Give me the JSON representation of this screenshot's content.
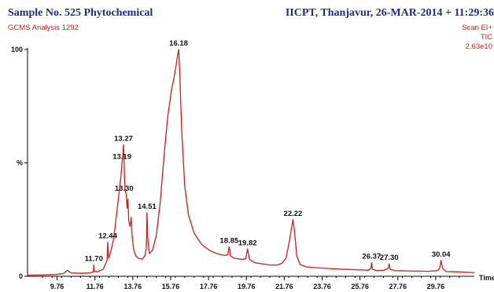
{
  "header": {
    "title_left": "Sample No. 525 Phytochemical",
    "subtitle_left": "GCMS Analysis 1292",
    "title_right": "IICPT, Thanjavur,  26-MAR-2014 + 11:29:36",
    "scan_label": "Scan EI+",
    "tic_label": "TIC",
    "intensity_label": "2.63e10"
  },
  "chart_data": {
    "type": "line",
    "title": "Sample No. 525 Phytochemical",
    "xlabel": "Time",
    "ylabel": "%",
    "xlim": [
      8.2,
      31.8
    ],
    "ylim": [
      0,
      100
    ],
    "x_ticks": [
      "9.76",
      "11.76",
      "13.76",
      "15.76",
      "17.76",
      "19.76",
      "21.76",
      "23.76",
      "25.76",
      "27.76",
      "29.76"
    ],
    "y_ticks": [
      "0",
      "%",
      "100"
    ],
    "line_color": "#d41a1a",
    "series": [
      {
        "x": [
          8.2,
          9.0,
          9.7,
          10.1,
          10.3,
          10.5,
          11.0,
          11.5,
          11.68,
          11.7,
          11.73,
          11.9,
          12.2,
          12.4,
          12.44,
          12.48,
          12.6,
          12.75,
          12.9,
          13.05,
          13.13,
          13.19,
          13.23,
          13.27,
          13.31,
          13.35,
          13.42,
          13.46,
          13.5,
          13.55,
          13.62,
          13.68,
          13.72,
          13.8,
          13.92,
          14.05,
          14.25,
          14.4,
          14.47,
          14.51,
          14.55,
          14.63,
          14.8,
          15.0,
          15.2,
          15.4,
          15.6,
          15.8,
          15.95,
          16.05,
          16.12,
          16.18,
          16.24,
          16.34,
          16.5,
          16.7,
          17.0,
          17.4,
          17.8,
          18.2,
          18.6,
          18.78,
          18.85,
          18.92,
          19.1,
          19.5,
          19.72,
          19.82,
          19.92,
          20.2,
          20.6,
          21.0,
          21.4,
          21.65,
          21.85,
          22.0,
          22.12,
          22.22,
          22.3,
          22.42,
          22.6,
          22.9,
          23.4,
          24.0,
          24.6,
          25.2,
          25.8,
          26.2,
          26.34,
          26.37,
          26.42,
          26.6,
          27.0,
          27.26,
          27.3,
          27.36,
          27.6,
          28.2,
          28.8,
          29.4,
          29.85,
          29.98,
          30.04,
          30.12,
          30.3,
          30.8,
          31.3,
          31.8
        ],
        "y": [
          0.5,
          0.6,
          0.8,
          1.2,
          2.6,
          1.5,
          1.3,
          1.5,
          2.0,
          5.0,
          2.2,
          2.0,
          3.2,
          7.0,
          15.0,
          8.0,
          11.0,
          16.5,
          27.0,
          38.0,
          44.0,
          50.0,
          53.0,
          58.0,
          47.0,
          38.0,
          36.0,
          30.0,
          34.0,
          24.0,
          22.0,
          26.0,
          18.0,
          12.0,
          9.0,
          8.0,
          7.5,
          9.0,
          12.0,
          28.0,
          17.0,
          10.0,
          11.5,
          18.0,
          32.0,
          52.0,
          70.0,
          82.0,
          88.0,
          93.0,
          97.0,
          100.0,
          90.0,
          65.0,
          40.0,
          27.0,
          19.0,
          14.0,
          11.5,
          10.0,
          9.2,
          9.5,
          13.0,
          9.0,
          8.0,
          7.5,
          7.7,
          12.0,
          7.5,
          6.0,
          5.5,
          5.0,
          5.0,
          5.8,
          8.0,
          14.0,
          20.0,
          25.0,
          20.0,
          9.0,
          5.2,
          4.2,
          3.8,
          3.5,
          3.2,
          3.0,
          2.8,
          2.7,
          3.5,
          6.0,
          3.2,
          2.6,
          2.6,
          3.5,
          5.5,
          3.0,
          2.5,
          2.4,
          2.3,
          2.2,
          2.5,
          3.8,
          7.0,
          3.6,
          2.1,
          2.0,
          1.8,
          1.6
        ]
      }
    ],
    "peak_labels": [
      {
        "text": "16.18",
        "x": 16.18,
        "y": 100.0
      },
      {
        "text": "13.27",
        "x": 13.27,
        "y": 58.0
      },
      {
        "text": "13.19",
        "x": 13.19,
        "y": 50.0
      },
      {
        "text": "13.30",
        "x": 13.3,
        "y": 36.0
      },
      {
        "text": "14.51",
        "x": 14.51,
        "y": 28.0
      },
      {
        "text": "12.44",
        "x": 12.44,
        "y": 15.0
      },
      {
        "text": "11.70",
        "x": 11.7,
        "y": 5.0
      },
      {
        "text": "18.85",
        "x": 18.85,
        "y": 13.0
      },
      {
        "text": "19.82",
        "x": 19.82,
        "y": 12.0
      },
      {
        "text": "22.22",
        "x": 22.22,
        "y": 25.0
      },
      {
        "text": "26.37",
        "x": 26.37,
        "y": 6.0
      },
      {
        "text": "27.30",
        "x": 27.3,
        "y": 5.5
      },
      {
        "text": "30.04",
        "x": 30.04,
        "y": 7.0
      }
    ]
  }
}
